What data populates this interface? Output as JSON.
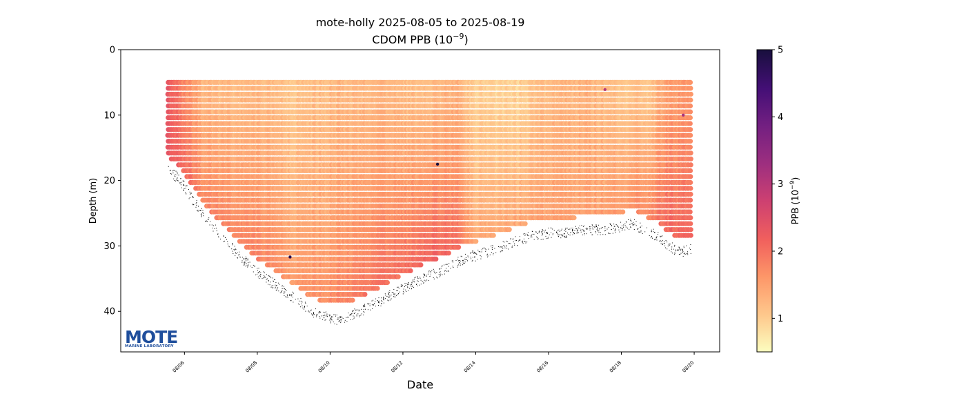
{
  "chart_data": {
    "type": "scatter",
    "title": "mote-holly 2025-08-05 to 2025-08-19",
    "subtitle_prefix": "CDOM PPB (10",
    "subtitle_exp": "−9",
    "subtitle_suffix": ")",
    "xlabel": "Date",
    "ylabel": "Depth (m)",
    "x_ticks": [
      "08/06",
      "08/08",
      "08/10",
      "08/12",
      "08/14",
      "08/16",
      "08/18",
      "08/20"
    ],
    "x_tick_values_days": [
      6,
      8,
      10,
      12,
      14,
      16,
      18,
      20
    ],
    "xlim_days": [
      4.25,
      20.7
    ],
    "y_ticks": [
      0,
      10,
      20,
      30,
      40
    ],
    "ylim": [
      46.2,
      0
    ],
    "y_inverted": true,
    "colorbar": {
      "label_prefix": "PPB (10",
      "label_exp": "−9",
      "label_suffix": ")",
      "ticks": [
        1,
        2,
        3,
        4,
        5
      ],
      "range": [
        0.5,
        5
      ],
      "colormap": "magma_r"
    },
    "data_top_depth_m": 5,
    "bottom_depth_profile": {
      "day": [
        5.55,
        5.8,
        6.0,
        6.3,
        6.6,
        7.0,
        7.5,
        8.0,
        8.5,
        9.0,
        9.5,
        10.0,
        10.3,
        10.6,
        11.0,
        11.5,
        12.0,
        12.5,
        13.0,
        13.5,
        13.8,
        14.0,
        14.5,
        15.0,
        15.5,
        16.0,
        16.5,
        17.0,
        17.5,
        18.0,
        18.3,
        18.6,
        19.0,
        19.3,
        19.6,
        19.9
      ],
      "depth_m": [
        18.0,
        19.0,
        20.5,
        23.0,
        25.5,
        28.0,
        31.0,
        33.5,
        35.5,
        37.5,
        39.5,
        40.5,
        40.8,
        40.0,
        39.0,
        37.5,
        36.0,
        34.5,
        33.5,
        32.0,
        31.0,
        31.0,
        30.0,
        29.0,
        28.0,
        27.5,
        27.5,
        27.0,
        27.0,
        26.5,
        26.0,
        27.0,
        28.0,
        29.5,
        30.5,
        30.0
      ]
    },
    "cdom_ppb_profile": {
      "day": [
        5.55,
        6.0,
        6.5,
        7.0,
        8.0,
        9.0,
        10.0,
        11.0,
        12.0,
        12.8,
        13.5,
        14.0,
        15.0,
        16.0,
        17.0,
        18.0,
        18.8,
        19.3,
        19.9
      ],
      "surface_ppb": [
        2.3,
        1.8,
        1.3,
        1.2,
        1.2,
        1.1,
        1.2,
        1.3,
        1.2,
        1.2,
        1.3,
        1.0,
        0.9,
        1.2,
        1.3,
        1.1,
        1.1,
        1.5,
        1.6
      ],
      "bottom_ppb": [
        2.3,
        2.1,
        1.8,
        1.8,
        1.8,
        1.6,
        1.7,
        2.0,
        2.0,
        2.2,
        2.0,
        1.4,
        1.4,
        1.5,
        1.5,
        1.6,
        1.8,
        2.1,
        2.1
      ]
    },
    "outliers": [
      {
        "day": 12.95,
        "depth_m": 17.5,
        "ppb": 5.0
      },
      {
        "day": 8.9,
        "depth_m": 31.7,
        "ppb": 4.8
      },
      {
        "day": 17.55,
        "depth_m": 6.1,
        "ppb": 3.0
      },
      {
        "day": 19.7,
        "depth_m": 10.0,
        "ppb": 3.2
      }
    ]
  },
  "logo": {
    "name": "MOTE",
    "subtitle": "MARINE LABORATORY",
    "color": "#1f4e9c"
  }
}
